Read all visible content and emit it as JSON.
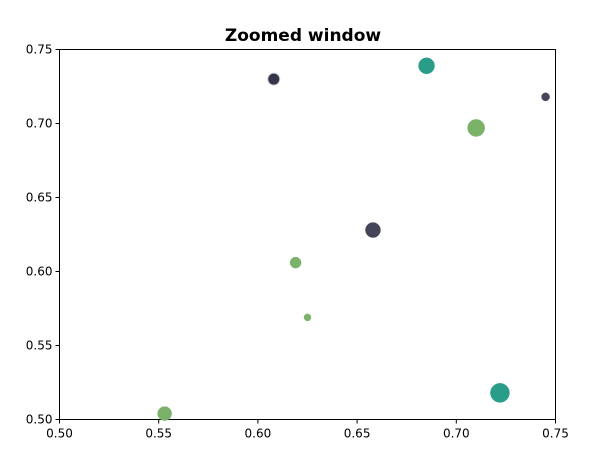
{
  "chart_data": {
    "type": "scatter",
    "title": "Zoomed window",
    "xlabel": "",
    "ylabel": "",
    "xlim": [
      0.5,
      0.75
    ],
    "ylim": [
      0.5,
      0.75
    ],
    "xticks": [
      0.5,
      0.55,
      0.6,
      0.65,
      0.7,
      0.75
    ],
    "yticks": [
      0.5,
      0.55,
      0.6,
      0.65,
      0.7,
      0.75
    ],
    "xtick_labels": [
      "0.50",
      "0.55",
      "0.60",
      "0.65",
      "0.70",
      "0.75"
    ],
    "ytick_labels": [
      "0.50",
      "0.55",
      "0.60",
      "0.65",
      "0.70",
      "0.75"
    ],
    "grid": false,
    "colors": {
      "dark": "#45455a",
      "teal": "#2a9d8a",
      "green": "#7ab26a"
    },
    "points": [
      {
        "x": 0.608,
        "y": 0.73,
        "size": 6,
        "color": "#34344a",
        "edge": "#cfcfd8"
      },
      {
        "x": 0.685,
        "y": 0.739,
        "size": 8,
        "color": "#2a9d8a",
        "edge": "#2a9d8a"
      },
      {
        "x": 0.745,
        "y": 0.718,
        "size": 4,
        "color": "#45455a",
        "edge": "#45455a"
      },
      {
        "x": 0.71,
        "y": 0.697,
        "size": 8.5,
        "color": "#7ab26a",
        "edge": "#7ab26a"
      },
      {
        "x": 0.658,
        "y": 0.628,
        "size": 7.5,
        "color": "#45455a",
        "edge": "#45455a"
      },
      {
        "x": 0.619,
        "y": 0.606,
        "size": 5.5,
        "color": "#7ab26a",
        "edge": "#7ab26a"
      },
      {
        "x": 0.625,
        "y": 0.569,
        "size": 3.5,
        "color": "#7ab26a",
        "edge": "#7ab26a"
      },
      {
        "x": 0.722,
        "y": 0.518,
        "size": 9.5,
        "color": "#2a9d8a",
        "edge": "#2a9d8a"
      },
      {
        "x": 0.553,
        "y": 0.504,
        "size": 7,
        "color": "#7ab26a",
        "edge": "#7ab26a"
      }
    ]
  }
}
